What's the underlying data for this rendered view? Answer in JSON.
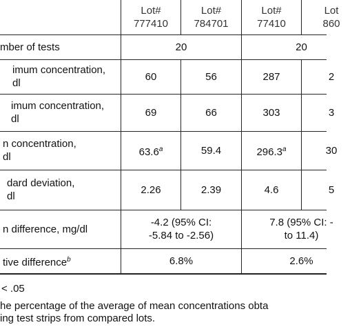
{
  "table": {
    "header": [
      [
        "Lot#",
        "777410"
      ],
      [
        "Lot#",
        "784701"
      ],
      [
        "Lot#",
        "77410"
      ],
      [
        "Lot",
        "860"
      ]
    ],
    "rows": [
      {
        "label": [
          "mber of tests"
        ],
        "cells": [
          {
            "lines": [
              "20"
            ]
          },
          {
            "lines": [
              "20"
            ]
          }
        ]
      },
      {
        "label": [
          "imum concentration,",
          "dl"
        ],
        "cells": [
          {
            "lines": [
              "60"
            ]
          },
          {
            "lines": [
              "56"
            ]
          },
          {
            "lines": [
              "287"
            ]
          },
          {
            "lines": [
              "2"
            ]
          }
        ]
      },
      {
        "label": [
          "imum concentration,",
          "dl"
        ],
        "cells": [
          {
            "lines": [
              "69"
            ]
          },
          {
            "lines": [
              "66"
            ]
          },
          {
            "lines": [
              "303"
            ]
          },
          {
            "lines": [
              "3"
            ]
          }
        ]
      },
      {
        "label": [
          "n concentration,",
          "dl"
        ],
        "cells": [
          {
            "lines": [
              "63.6"
            ],
            "sup": "a"
          },
          {
            "lines": [
              "59.4"
            ]
          },
          {
            "lines": [
              "296.3"
            ],
            "sup": "a"
          },
          {
            "lines": [
              "30"
            ]
          }
        ]
      },
      {
        "label": [
          "dard deviation,",
          "dl"
        ],
        "cells": [
          {
            "lines": [
              "2.26"
            ]
          },
          {
            "lines": [
              "2.39"
            ]
          },
          {
            "lines": [
              "4.6"
            ]
          },
          {
            "lines": [
              "5"
            ]
          }
        ]
      },
      {
        "label": [
          "n difference, mg/dl"
        ],
        "cells": [
          {
            "lines": [
              "-4.2 (95% CI:",
              "-5.84 to -2.56)"
            ]
          },
          {
            "lines": [
              "7.8 (95% CI: -",
              "to 11.4)"
            ]
          }
        ]
      },
      {
        "label": [
          "tive difference"
        ],
        "label_sup": "b",
        "cells": [
          {
            "lines": [
              "6.8%"
            ]
          },
          {
            "lines": [
              "2.6%"
            ]
          }
        ]
      }
    ],
    "footnotes": [
      "< .05",
      "he percentage of the average of mean concentrations obta",
      "ing test strips from compared lots."
    ]
  }
}
